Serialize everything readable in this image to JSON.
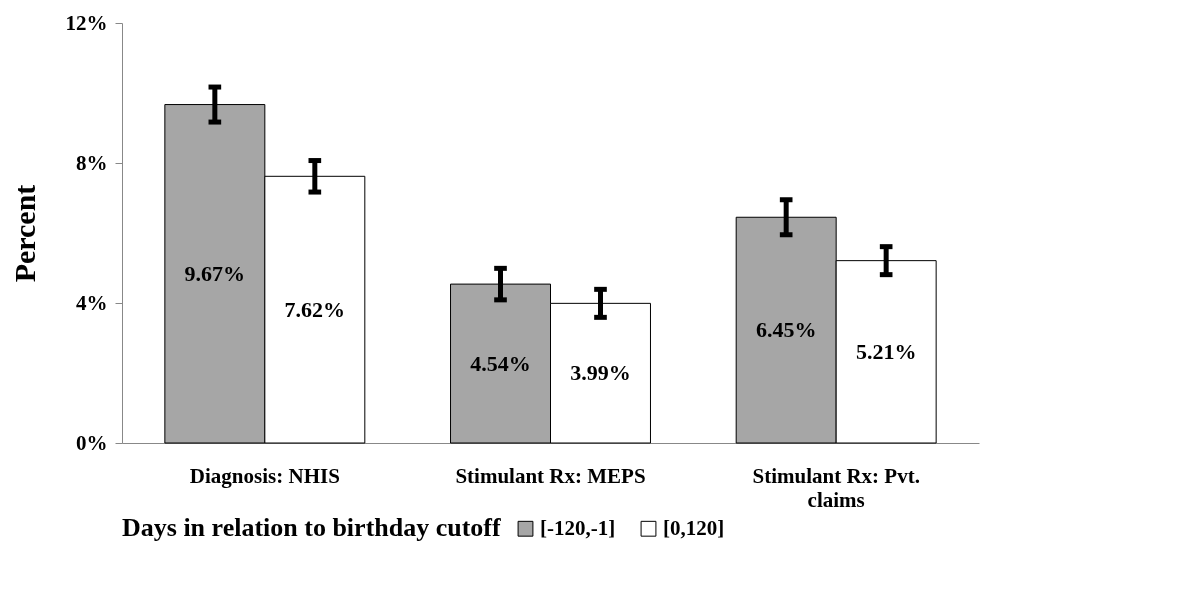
{
  "chart_data": {
    "type": "bar",
    "ylabel": "Percent",
    "legend_title": "Days in relation to birthday cutoff",
    "legend": "bottom",
    "categories": [
      "Diagnosis:  NHIS",
      "Stimulant Rx:  MEPS",
      "Stimulant Rx:  Pvt. claims"
    ],
    "series": [
      {
        "name": "[-120,-1]",
        "color": "#a6a6a6",
        "values": [
          9.67,
          4.54,
          6.45
        ],
        "errors": [
          0.5,
          0.45,
          0.5
        ],
        "value_labels": [
          "9.67%",
          "4.54%",
          "6.45%"
        ]
      },
      {
        "name": "[0,120]",
        "color": "#ffffff",
        "values": [
          7.62,
          3.99,
          5.21
        ],
        "errors": [
          0.45,
          0.4,
          0.4
        ],
        "value_labels": [
          "7.62%",
          "3.99%",
          "5.21%"
        ]
      }
    ],
    "ylim": [
      0,
      12
    ],
    "yticks": [
      {
        "value": 0,
        "label": "0%"
      },
      {
        "value": 4,
        "label": "4%"
      },
      {
        "value": 8,
        "label": "8%"
      },
      {
        "value": 12,
        "label": "12%"
      }
    ],
    "grid": false
  }
}
